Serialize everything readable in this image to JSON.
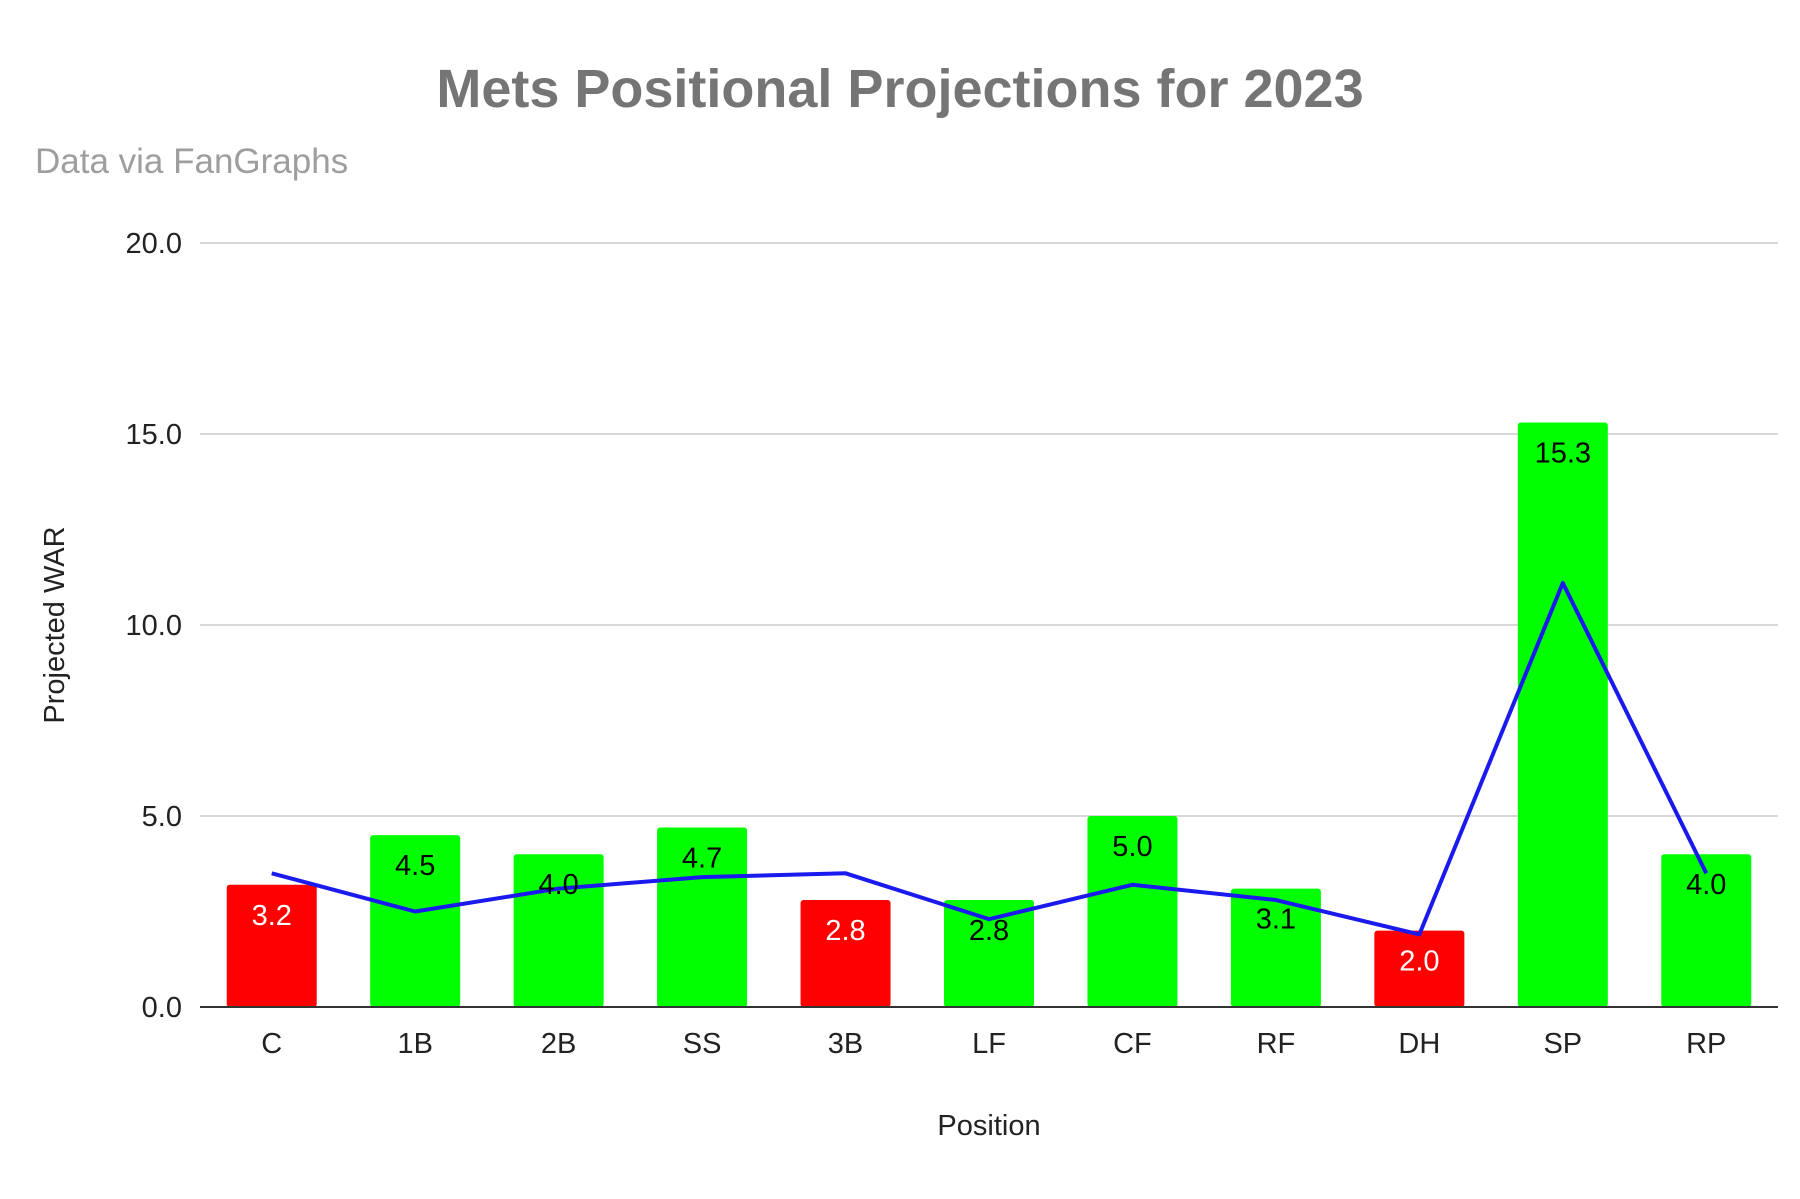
{
  "chart_data": {
    "type": "bar",
    "title": "Mets Positional Projections for 2023",
    "subtitle": "Data via FanGraphs",
    "xlabel": "Position",
    "ylabel": "Projected WAR",
    "ylim": [
      0,
      20
    ],
    "yticks": [
      "0.0",
      "5.0",
      "10.0",
      "15.0",
      "20.0"
    ],
    "grid": true,
    "categories": [
      "C",
      "1B",
      "2B",
      "SS",
      "3B",
      "LF",
      "CF",
      "RF",
      "DH",
      "SP",
      "RP"
    ],
    "series": [
      {
        "type": "bar",
        "values": [
          3.2,
          4.5,
          4.0,
          4.7,
          2.8,
          2.8,
          5.0,
          3.1,
          2.0,
          15.3,
          4.0
        ],
        "labels": [
          "3.2",
          "4.5",
          "4.0",
          "4.7",
          "2.8",
          "2.8",
          "5.0",
          "3.1",
          "2.0",
          "15.3",
          "4.0"
        ],
        "colors": [
          "#ff0000",
          "#00ff00",
          "#00ff00",
          "#00ff00",
          "#ff0000",
          "#00ff00",
          "#00ff00",
          "#00ff00",
          "#ff0000",
          "#00ff00",
          "#00ff00"
        ],
        "label_colors": [
          "#ffffff",
          "#000000",
          "#000000",
          "#000000",
          "#ffffff",
          "#000000",
          "#000000",
          "#000000",
          "#ffffff",
          "#000000",
          "#000000"
        ]
      },
      {
        "type": "line",
        "values": [
          3.5,
          2.5,
          3.1,
          3.4,
          3.5,
          2.3,
          3.2,
          2.8,
          1.9,
          11.1,
          3.5
        ],
        "color": "#1a1aee"
      }
    ],
    "colors": {
      "bar_positive": "#00ff00",
      "bar_negative": "#ff0000",
      "line": "#1a1aee",
      "grid": "#cccccc",
      "axis": "#333333"
    }
  }
}
